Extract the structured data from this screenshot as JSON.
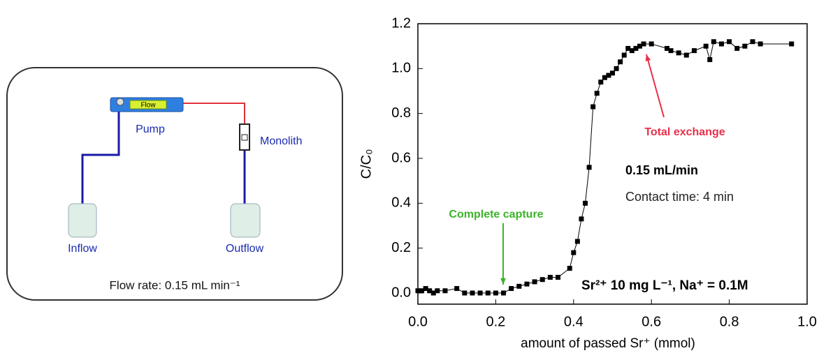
{
  "diagram": {
    "pump": "Pump",
    "flow": "Flow",
    "monolith": "Monolith",
    "inflow": "Inflow",
    "outflow": "Outflow",
    "flow_rate": "Flow rate: 0.15 mL min⁻¹"
  },
  "chart_data": {
    "type": "line",
    "x_label": "amount of passed Sr⁺ (mmol)",
    "y_label": "C/C₀",
    "color": "#000000",
    "x": [
      0.0,
      0.01,
      0.02,
      0.03,
      0.04,
      0.05,
      0.07,
      0.1,
      0.12,
      0.14,
      0.16,
      0.18,
      0.2,
      0.22,
      0.24,
      0.26,
      0.28,
      0.3,
      0.32,
      0.34,
      0.36,
      0.39,
      0.4,
      0.41,
      0.42,
      0.43,
      0.44,
      0.45,
      0.46,
      0.47,
      0.48,
      0.49,
      0.5,
      0.51,
      0.52,
      0.53,
      0.54,
      0.55,
      0.56,
      0.57,
      0.58,
      0.6,
      0.64,
      0.65,
      0.67,
      0.69,
      0.71,
      0.74,
      0.75,
      0.76,
      0.78,
      0.8,
      0.82,
      0.84,
      0.86,
      0.88,
      0.96
    ],
    "values": [
      0.01,
      0.01,
      0.02,
      0.01,
      0.0,
      0.01,
      0.01,
      0.02,
      0.0,
      0.0,
      0.0,
      0.0,
      0.0,
      0.0,
      0.02,
      0.03,
      0.04,
      0.05,
      0.06,
      0.07,
      0.07,
      0.11,
      0.18,
      0.23,
      0.33,
      0.4,
      0.56,
      0.83,
      0.89,
      0.94,
      0.96,
      0.97,
      0.98,
      1.0,
      1.03,
      1.06,
      1.09,
      1.08,
      1.09,
      1.1,
      1.11,
      1.11,
      1.09,
      1.08,
      1.07,
      1.06,
      1.08,
      1.1,
      1.04,
      1.12,
      1.11,
      1.12,
      1.09,
      1.1,
      1.12,
      1.11,
      1.11
    ],
    "xlim": [
      0,
      1
    ],
    "ylim": [
      0,
      1.2
    ],
    "xticks": [
      {
        "value": 0,
        "label": "0.0"
      },
      {
        "value": 0.2,
        "label": "0.2"
      },
      {
        "value": 0.4,
        "label": "0.4"
      },
      {
        "value": 0.6,
        "label": "0.6"
      },
      {
        "value": 0.8,
        "label": "0.8"
      },
      {
        "value": 1,
        "label": "1.0"
      }
    ],
    "yticks": [
      {
        "value": 0,
        "label": "0.0"
      },
      {
        "value": 0.2,
        "label": "0.2"
      },
      {
        "value": 0.4,
        "label": "0.4"
      },
      {
        "value": 0.6,
        "label": "0.6"
      },
      {
        "value": 0.8,
        "label": "0.8"
      },
      {
        "value": 1,
        "label": "1.0"
      },
      {
        "value": 1.2,
        "label": "1.2"
      }
    ],
    "annotations": [
      {
        "text": "Complete capture",
        "color": "#3cb32a"
      },
      {
        "text": "Total exchange",
        "color": "#e8304a"
      },
      {
        "text": "0.15 mL/min",
        "color": "#000000"
      },
      {
        "text": "Contact time: 4 min",
        "color": "#222222"
      },
      {
        "text": "Sr²⁺ 10 mg L⁻¹, Na⁺ = 0.1M",
        "color": "#000000"
      }
    ]
  }
}
